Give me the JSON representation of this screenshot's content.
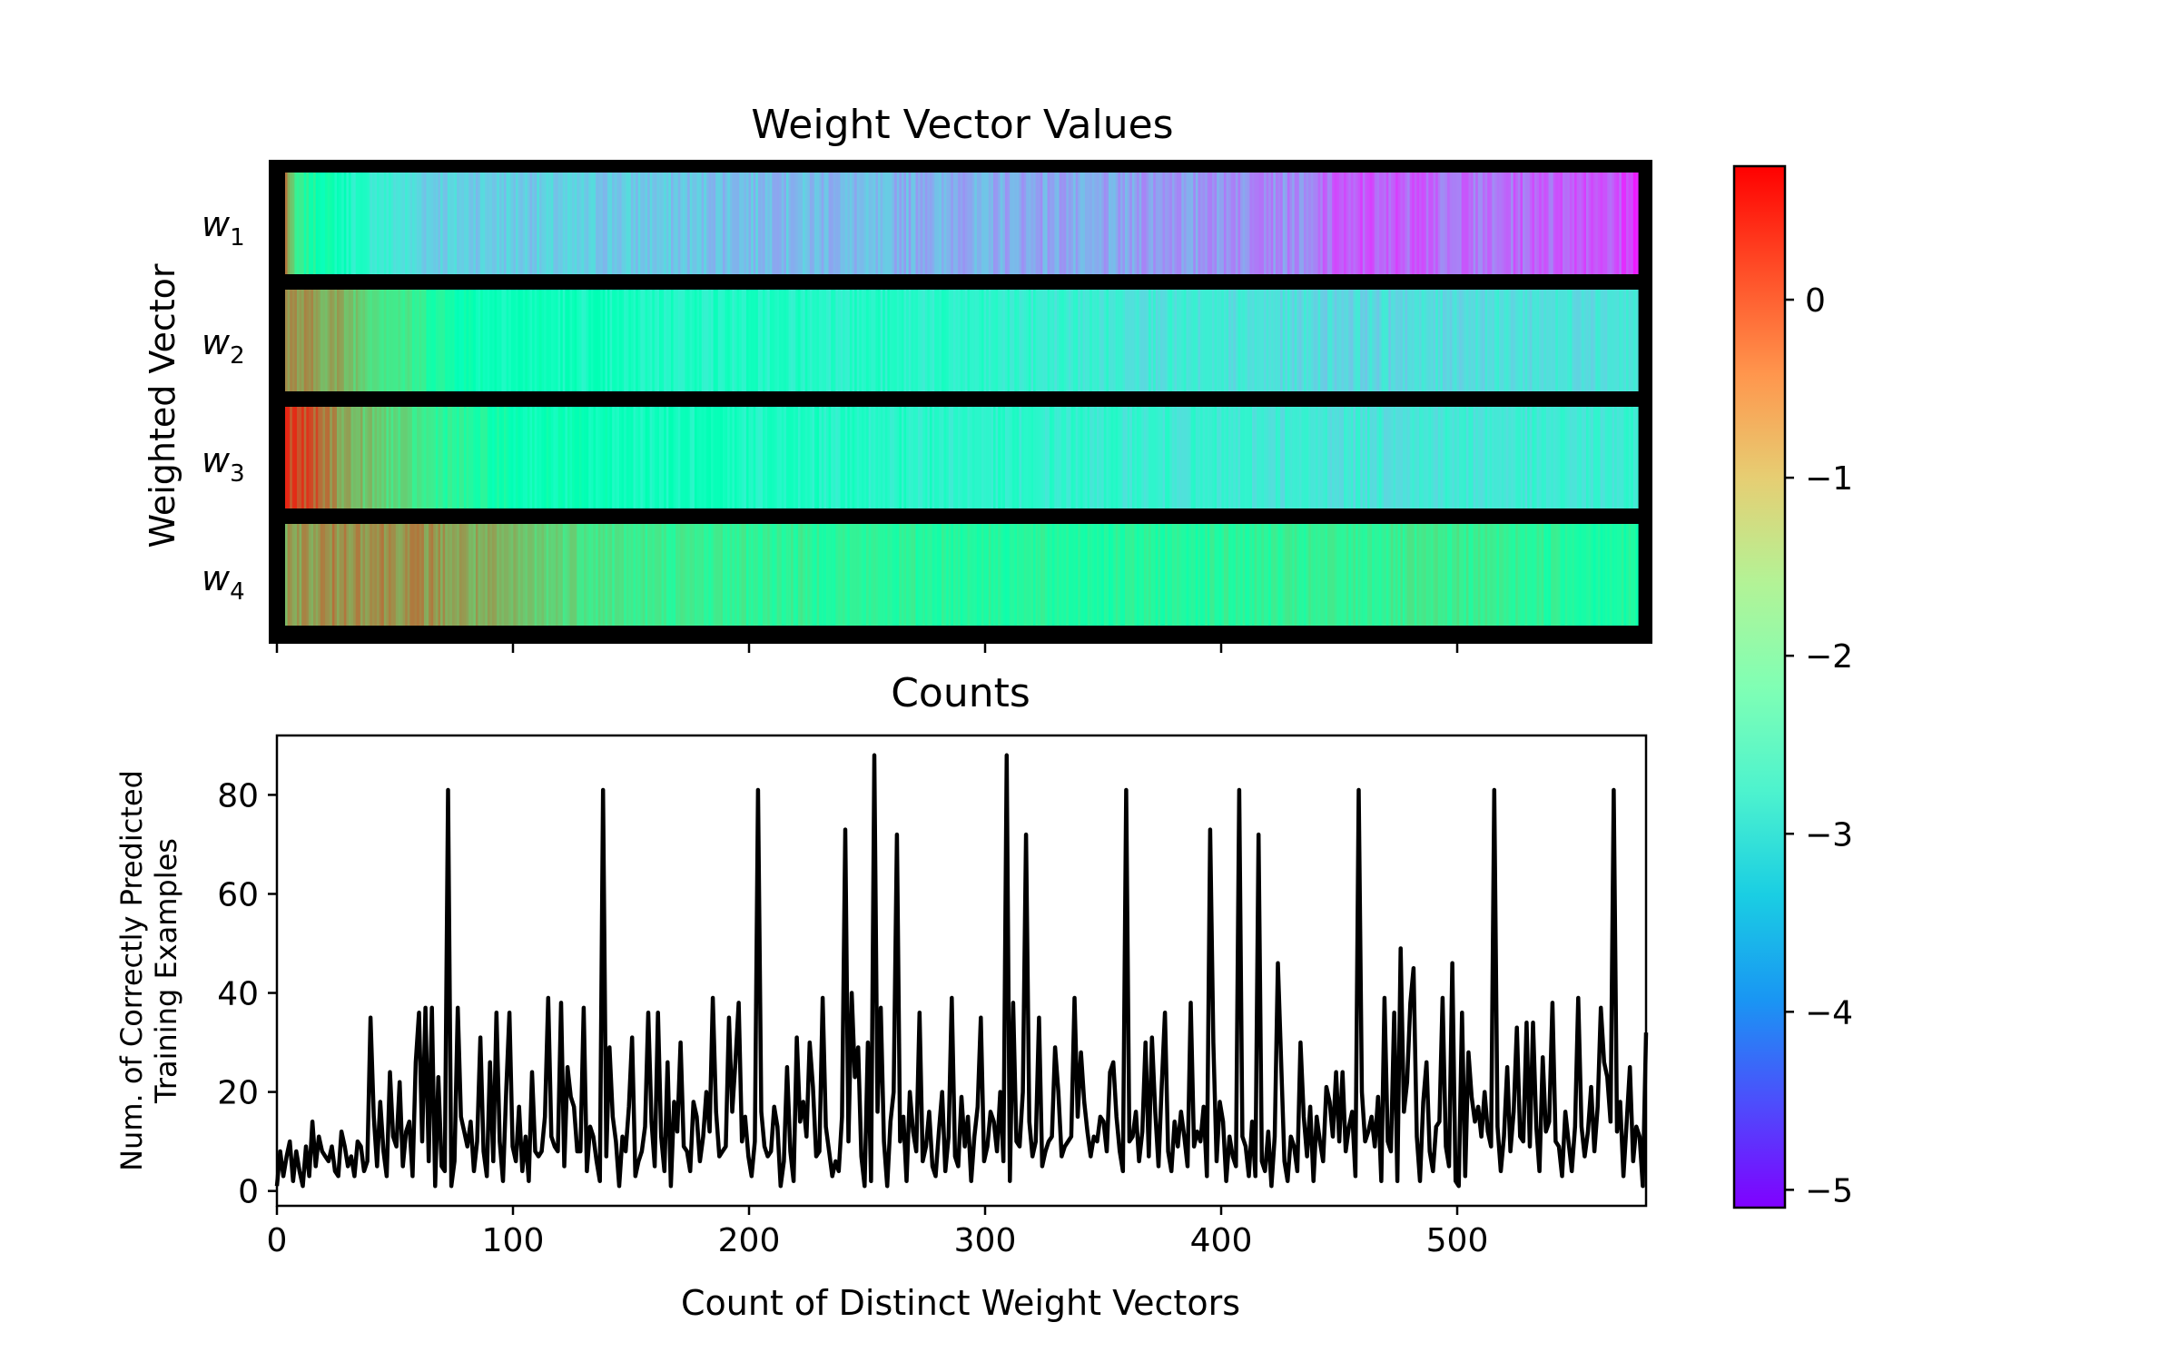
{
  "chart_data": [
    {
      "type": "heatmap",
      "title": "Weight Vector Values",
      "ylabel": "Weighted Vector",
      "row_labels": [
        "w",
        "w",
        "w",
        "w"
      ],
      "row_subscripts": [
        "1",
        "2",
        "3",
        "4"
      ],
      "x_range": [
        0,
        580
      ],
      "colormap": "rainbow",
      "value_range": [
        -5.1,
        0.75
      ],
      "colorbar_ticks": [
        "0",
        "−1",
        "−2",
        "−3",
        "−4",
        "−5"
      ],
      "colorbar_tick_values": [
        0,
        -1,
        -2,
        -3,
        -4,
        -5
      ],
      "rows": [
        {
          "label": "w1",
          "keyframes": [
            [
              0,
              -0.2
            ],
            [
              4,
              -1.6
            ],
            [
              30,
              -2.6
            ],
            [
              60,
              -3.3
            ],
            [
              150,
              -3.4
            ],
            [
              250,
              -3.6
            ],
            [
              350,
              -3.8
            ],
            [
              430,
              -4.0
            ],
            [
              450,
              -4.5
            ],
            [
              500,
              -4.2
            ],
            [
              560,
              -4.4
            ],
            [
              575,
              -4.7
            ]
          ]
        },
        {
          "label": "w2",
          "keyframes": [
            [
              0,
              -0.4
            ],
            [
              20,
              -0.6
            ],
            [
              40,
              -1.2
            ],
            [
              80,
              -2.2
            ],
            [
              150,
              -2.5
            ],
            [
              250,
              -2.6
            ],
            [
              350,
              -2.9
            ],
            [
              450,
              -3.2
            ],
            [
              575,
              -3.0
            ]
          ]
        },
        {
          "label": "w3",
          "keyframes": [
            [
              0,
              0.35
            ],
            [
              10,
              0.1
            ],
            [
              30,
              -0.8
            ],
            [
              60,
              -1.5
            ],
            [
              100,
              -2.2
            ],
            [
              200,
              -2.5
            ],
            [
              300,
              -2.7
            ],
            [
              450,
              -3.0
            ],
            [
              575,
              -2.9
            ]
          ]
        },
        {
          "label": "w4",
          "keyframes": [
            [
              0,
              -0.5
            ],
            [
              30,
              -0.3
            ],
            [
              60,
              -0.4
            ],
            [
              100,
              -0.9
            ],
            [
              150,
              -1.5
            ],
            [
              250,
              -1.7
            ],
            [
              350,
              -1.8
            ],
            [
              450,
              -1.6
            ],
            [
              500,
              -1.5
            ],
            [
              575,
              -1.9
            ]
          ]
        }
      ]
    },
    {
      "type": "line",
      "title": "Counts",
      "xlabel": "Count of Distinct Weight Vectors",
      "ylabel_lines": [
        "Num. of Correctly Predicted",
        "Training Examples"
      ],
      "xlim": [
        0,
        580
      ],
      "ylim": [
        -3,
        92
      ],
      "xticks": [
        0,
        100,
        200,
        300,
        400,
        500
      ],
      "yticks": [
        0,
        20,
        40,
        60,
        80
      ],
      "x_start": 0,
      "y": [
        1,
        8,
        3,
        7,
        10,
        2,
        8,
        4,
        1,
        9,
        3,
        14,
        5,
        11,
        8,
        7,
        6,
        9,
        4,
        3,
        12,
        9,
        5,
        7,
        3,
        10,
        9,
        4,
        6,
        35,
        15,
        5,
        18,
        8,
        3,
        24,
        11,
        9,
        22,
        5,
        12,
        14,
        3,
        26,
        36,
        10,
        37,
        6,
        37,
        1,
        23,
        5,
        4,
        81,
        1,
        6,
        37,
        15,
        12,
        9,
        14,
        4,
        10,
        31,
        8,
        3,
        26,
        6,
        36,
        10,
        2,
        20,
        36,
        9,
        6,
        17,
        4,
        11,
        2,
        24,
        8,
        7,
        8,
        15,
        39,
        11,
        9,
        8,
        38,
        5,
        25,
        19,
        17,
        8,
        8,
        37,
        4,
        13,
        11,
        6,
        2,
        81,
        7,
        29,
        15,
        10,
        1,
        11,
        8,
        17,
        31,
        3,
        6,
        8,
        13,
        36,
        14,
        5,
        36,
        11,
        4,
        26,
        1,
        18,
        12,
        30,
        9,
        8,
        4,
        18,
        15,
        6,
        11,
        20,
        12,
        39,
        16,
        7,
        8,
        9,
        35,
        16,
        26,
        38,
        10,
        15,
        7,
        3,
        10,
        81,
        16,
        9,
        7,
        8,
        17,
        13,
        1,
        6,
        25,
        8,
        2,
        31,
        14,
        18,
        11,
        30,
        21,
        7,
        8,
        39,
        13,
        8,
        3,
        6,
        4,
        15,
        73,
        10,
        40,
        23,
        29,
        7,
        1,
        30,
        2,
        88,
        16,
        37,
        10,
        1,
        14,
        20,
        72,
        10,
        15,
        2,
        20,
        12,
        8,
        36,
        6,
        9,
        16,
        5,
        3,
        12,
        20,
        4,
        11,
        39,
        7,
        5,
        19,
        9,
        15,
        2,
        11,
        17,
        35,
        6,
        9,
        16,
        14,
        8,
        20,
        6,
        88,
        2,
        38,
        10,
        9,
        20,
        72,
        14,
        7,
        10,
        35,
        5,
        8,
        10,
        11,
        29,
        20,
        7,
        9,
        10,
        11,
        39,
        15,
        28,
        18,
        12,
        7,
        11,
        10,
        15,
        14,
        8,
        24,
        26,
        15,
        8,
        4,
        81,
        10,
        11,
        16,
        6,
        12,
        30,
        7,
        31,
        16,
        5,
        21,
        36,
        8,
        4,
        14,
        9,
        16,
        11,
        5,
        38,
        9,
        12,
        10,
        17,
        3,
        73,
        30,
        6,
        18,
        14,
        2,
        11,
        7,
        5,
        81,
        11,
        9,
        3,
        14,
        3,
        72,
        6,
        4,
        12,
        1,
        11,
        46,
        26,
        6,
        2,
        11,
        9,
        4,
        30,
        15,
        7,
        17,
        2,
        15,
        10,
        6,
        21,
        18,
        11,
        24,
        10,
        24,
        8,
        13,
        16,
        3,
        81,
        20,
        10,
        12,
        15,
        9,
        19,
        2,
        39,
        10,
        8,
        36,
        2,
        49,
        16,
        22,
        38,
        45,
        11,
        2,
        18,
        26,
        8,
        4,
        13,
        14,
        39,
        9,
        5,
        46,
        2,
        1,
        36,
        3,
        28,
        19,
        14,
        17,
        11,
        20,
        12,
        9,
        81,
        13,
        4,
        11,
        25,
        8,
        16,
        33,
        11,
        10,
        34,
        9,
        34,
        13,
        4,
        27,
        12,
        14,
        38,
        10,
        9,
        3,
        16,
        10,
        4,
        13,
        39,
        13,
        7,
        12,
        21,
        8,
        17,
        37,
        26,
        23,
        14,
        81,
        12,
        18,
        3,
        14,
        25,
        6,
        13,
        11,
        1,
        32
      ]
    }
  ]
}
